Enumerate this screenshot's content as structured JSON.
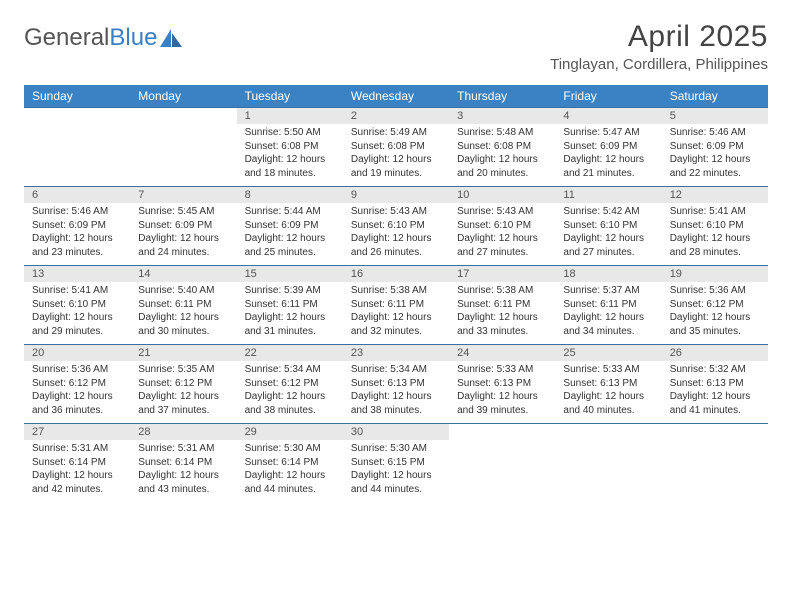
{
  "brand": {
    "part1": "General",
    "part2": "Blue"
  },
  "title": "April 2025",
  "location": "Tinglayan, Cordillera, Philippines",
  "colors": {
    "header_bg": "#3b82c4",
    "header_text": "#ffffff",
    "daynum_bg": "#e8e8e8",
    "rule": "#3b6fa0",
    "page_bg": "#ffffff",
    "text": "#333333",
    "brand_blue": "#3b7fc4"
  },
  "typography": {
    "title_fontsize": 30,
    "location_fontsize": 15,
    "weekday_fontsize": 12,
    "daynum_fontsize": 11,
    "cell_fontsize": 10,
    "font_family": "Arial"
  },
  "weekdays": [
    "Sunday",
    "Monday",
    "Tuesday",
    "Wednesday",
    "Thursday",
    "Friday",
    "Saturday"
  ],
  "weeks": [
    [
      null,
      null,
      {
        "d": "1",
        "sr": "Sunrise: 5:50 AM",
        "ss": "Sunset: 6:08 PM",
        "dl": "Daylight: 12 hours and 18 minutes."
      },
      {
        "d": "2",
        "sr": "Sunrise: 5:49 AM",
        "ss": "Sunset: 6:08 PM",
        "dl": "Daylight: 12 hours and 19 minutes."
      },
      {
        "d": "3",
        "sr": "Sunrise: 5:48 AM",
        "ss": "Sunset: 6:08 PM",
        "dl": "Daylight: 12 hours and 20 minutes."
      },
      {
        "d": "4",
        "sr": "Sunrise: 5:47 AM",
        "ss": "Sunset: 6:09 PM",
        "dl": "Daylight: 12 hours and 21 minutes."
      },
      {
        "d": "5",
        "sr": "Sunrise: 5:46 AM",
        "ss": "Sunset: 6:09 PM",
        "dl": "Daylight: 12 hours and 22 minutes."
      }
    ],
    [
      {
        "d": "6",
        "sr": "Sunrise: 5:46 AM",
        "ss": "Sunset: 6:09 PM",
        "dl": "Daylight: 12 hours and 23 minutes."
      },
      {
        "d": "7",
        "sr": "Sunrise: 5:45 AM",
        "ss": "Sunset: 6:09 PM",
        "dl": "Daylight: 12 hours and 24 minutes."
      },
      {
        "d": "8",
        "sr": "Sunrise: 5:44 AM",
        "ss": "Sunset: 6:09 PM",
        "dl": "Daylight: 12 hours and 25 minutes."
      },
      {
        "d": "9",
        "sr": "Sunrise: 5:43 AM",
        "ss": "Sunset: 6:10 PM",
        "dl": "Daylight: 12 hours and 26 minutes."
      },
      {
        "d": "10",
        "sr": "Sunrise: 5:43 AM",
        "ss": "Sunset: 6:10 PM",
        "dl": "Daylight: 12 hours and 27 minutes."
      },
      {
        "d": "11",
        "sr": "Sunrise: 5:42 AM",
        "ss": "Sunset: 6:10 PM",
        "dl": "Daylight: 12 hours and 27 minutes."
      },
      {
        "d": "12",
        "sr": "Sunrise: 5:41 AM",
        "ss": "Sunset: 6:10 PM",
        "dl": "Daylight: 12 hours and 28 minutes."
      }
    ],
    [
      {
        "d": "13",
        "sr": "Sunrise: 5:41 AM",
        "ss": "Sunset: 6:10 PM",
        "dl": "Daylight: 12 hours and 29 minutes."
      },
      {
        "d": "14",
        "sr": "Sunrise: 5:40 AM",
        "ss": "Sunset: 6:11 PM",
        "dl": "Daylight: 12 hours and 30 minutes."
      },
      {
        "d": "15",
        "sr": "Sunrise: 5:39 AM",
        "ss": "Sunset: 6:11 PM",
        "dl": "Daylight: 12 hours and 31 minutes."
      },
      {
        "d": "16",
        "sr": "Sunrise: 5:38 AM",
        "ss": "Sunset: 6:11 PM",
        "dl": "Daylight: 12 hours and 32 minutes."
      },
      {
        "d": "17",
        "sr": "Sunrise: 5:38 AM",
        "ss": "Sunset: 6:11 PM",
        "dl": "Daylight: 12 hours and 33 minutes."
      },
      {
        "d": "18",
        "sr": "Sunrise: 5:37 AM",
        "ss": "Sunset: 6:11 PM",
        "dl": "Daylight: 12 hours and 34 minutes."
      },
      {
        "d": "19",
        "sr": "Sunrise: 5:36 AM",
        "ss": "Sunset: 6:12 PM",
        "dl": "Daylight: 12 hours and 35 minutes."
      }
    ],
    [
      {
        "d": "20",
        "sr": "Sunrise: 5:36 AM",
        "ss": "Sunset: 6:12 PM",
        "dl": "Daylight: 12 hours and 36 minutes."
      },
      {
        "d": "21",
        "sr": "Sunrise: 5:35 AM",
        "ss": "Sunset: 6:12 PM",
        "dl": "Daylight: 12 hours and 37 minutes."
      },
      {
        "d": "22",
        "sr": "Sunrise: 5:34 AM",
        "ss": "Sunset: 6:12 PM",
        "dl": "Daylight: 12 hours and 38 minutes."
      },
      {
        "d": "23",
        "sr": "Sunrise: 5:34 AM",
        "ss": "Sunset: 6:13 PM",
        "dl": "Daylight: 12 hours and 38 minutes."
      },
      {
        "d": "24",
        "sr": "Sunrise: 5:33 AM",
        "ss": "Sunset: 6:13 PM",
        "dl": "Daylight: 12 hours and 39 minutes."
      },
      {
        "d": "25",
        "sr": "Sunrise: 5:33 AM",
        "ss": "Sunset: 6:13 PM",
        "dl": "Daylight: 12 hours and 40 minutes."
      },
      {
        "d": "26",
        "sr": "Sunrise: 5:32 AM",
        "ss": "Sunset: 6:13 PM",
        "dl": "Daylight: 12 hours and 41 minutes."
      }
    ],
    [
      {
        "d": "27",
        "sr": "Sunrise: 5:31 AM",
        "ss": "Sunset: 6:14 PM",
        "dl": "Daylight: 12 hours and 42 minutes."
      },
      {
        "d": "28",
        "sr": "Sunrise: 5:31 AM",
        "ss": "Sunset: 6:14 PM",
        "dl": "Daylight: 12 hours and 43 minutes."
      },
      {
        "d": "29",
        "sr": "Sunrise: 5:30 AM",
        "ss": "Sunset: 6:14 PM",
        "dl": "Daylight: 12 hours and 44 minutes."
      },
      {
        "d": "30",
        "sr": "Sunrise: 5:30 AM",
        "ss": "Sunset: 6:15 PM",
        "dl": "Daylight: 12 hours and 44 minutes."
      },
      null,
      null,
      null
    ]
  ]
}
